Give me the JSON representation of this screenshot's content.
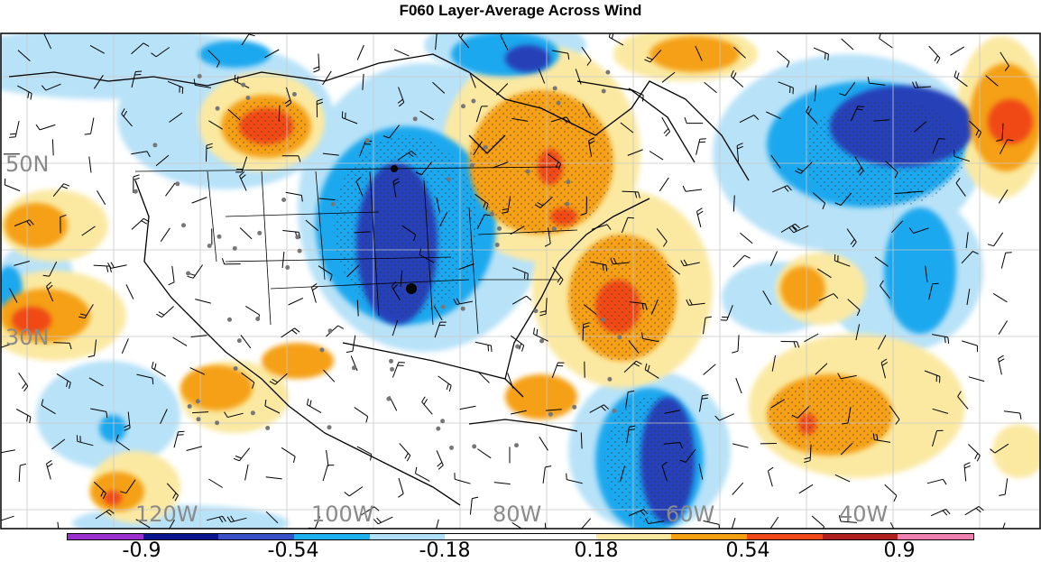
{
  "title": "F060 Layer-Average Across Wind",
  "latitude_labels": [
    "50N",
    "30N"
  ],
  "longitude_labels": [
    "120W",
    "100W",
    "80W",
    "60W",
    "40W"
  ],
  "colorbar": {
    "colors": [
      "#9b30d0",
      "#0a1590",
      "#3950c8",
      "#1fb0f0",
      "#b0e0f8",
      "#ffffff",
      "#ffffff",
      "#fae8a0",
      "#f5a010",
      "#f04818",
      "#b02020",
      "#f080b0"
    ],
    "tick_labels": [
      "-0.9",
      "-0.54",
      "-0.18",
      "0.18",
      "0.54",
      "0.9"
    ]
  },
  "colors": {
    "strong_negative": "#2840b8",
    "negative": "#1ea8ee",
    "weak_negative": "#b8e2f8",
    "weak_positive": "#fbe9a2",
    "positive": "#f5a012",
    "strong_positive": "#f04a18"
  }
}
